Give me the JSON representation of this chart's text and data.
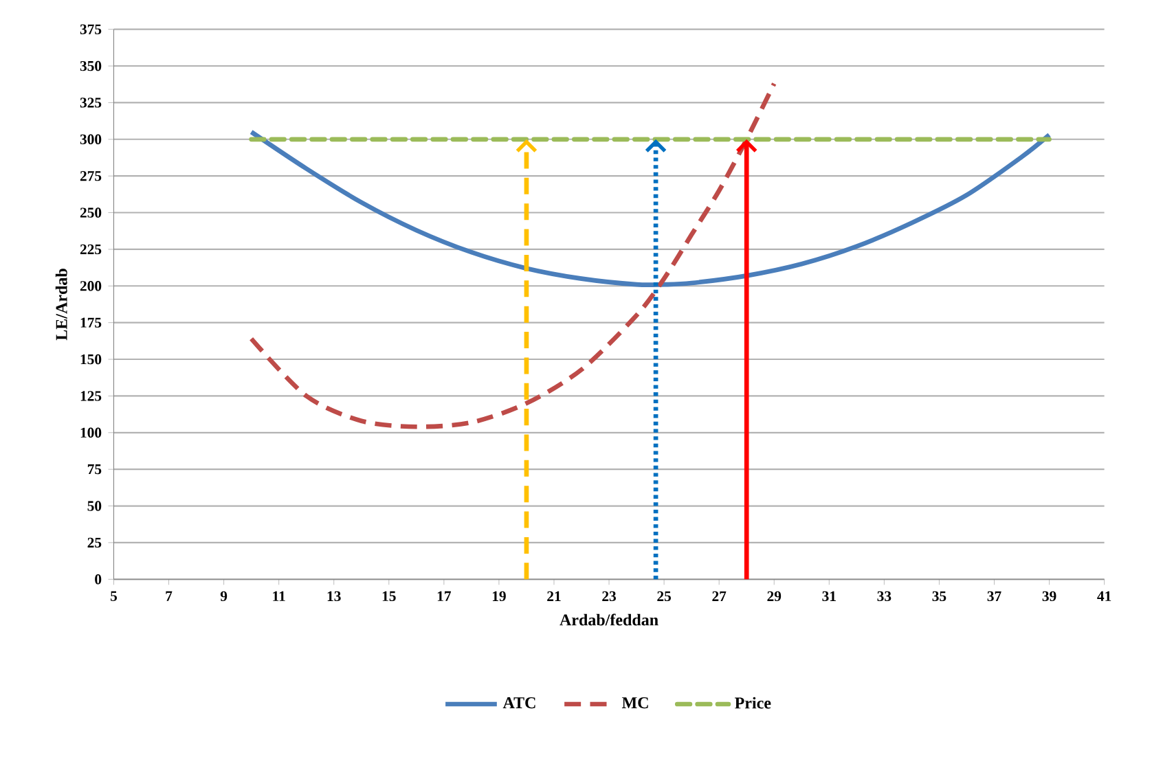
{
  "chart_data": {
    "type": "line",
    "xlabel": "Ardab/feddan",
    "ylabel": "LE/Ardab",
    "xlim": [
      5,
      41
    ],
    "xticks": [
      5,
      7,
      9,
      11,
      13,
      15,
      17,
      19,
      21,
      23,
      25,
      27,
      29,
      31,
      33,
      35,
      37,
      39,
      41
    ],
    "ylim": [
      0,
      375
    ],
    "yticks": [
      0,
      25,
      50,
      75,
      100,
      125,
      150,
      175,
      200,
      225,
      250,
      275,
      300,
      325,
      350,
      375
    ],
    "grid": "y",
    "legend": "bottom",
    "marker": "none",
    "series": [
      {
        "name": "ATC",
        "color": "#4a7ebb",
        "line_style": "solid",
        "x": [
          10,
          12,
          14,
          16,
          18,
          20,
          22,
          24,
          25,
          26,
          28,
          30,
          32,
          34,
          36,
          38,
          39
        ],
        "values": [
          305,
          280,
          257,
          238,
          223,
          212,
          205,
          201,
          201,
          202,
          207,
          215,
          227,
          243,
          262,
          288,
          303
        ]
      },
      {
        "name": "MC",
        "color": "#be4b48",
        "line_style": "dashed",
        "x": [
          10,
          12,
          14,
          16,
          18,
          20,
          22,
          24,
          25,
          26,
          27,
          28,
          29
        ],
        "values": [
          164,
          125,
          108,
          104,
          107,
          120,
          143,
          180,
          205,
          235,
          265,
          300,
          338
        ]
      },
      {
        "name": "Price",
        "color": "#9bbb59",
        "line_style": "dashed",
        "x": [
          10,
          39
        ],
        "values": [
          300,
          300
        ]
      }
    ],
    "ref_lines": [
      {
        "axis": "x",
        "value": 20,
        "color": "#ffc000",
        "line_style": "dashed"
      },
      {
        "axis": "x",
        "value": 24.7,
        "color": "#0070c0",
        "line_style": "dotted"
      },
      {
        "axis": "x",
        "value": 28,
        "color": "#ff0000",
        "line_style": "solid"
      }
    ]
  }
}
